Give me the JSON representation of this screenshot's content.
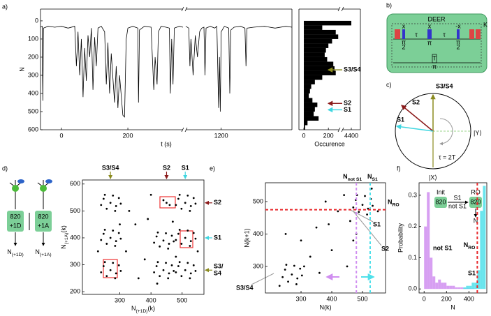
{
  "panel_labels": [
    "a)",
    "b)",
    "c)",
    "d)",
    "e)",
    "f)"
  ],
  "deer": {
    "title": "DEER",
    "loop": "K",
    "phase_x": "x",
    "phase_mx": "-x",
    "tau": "τ",
    "pi": "π",
    "two": "2",
    "delay": "T"
  },
  "bloch": {
    "s34": "S3/S4",
    "s2": "S2",
    "s1": "S1",
    "y": "|Y⟩",
    "x": "|X⟩",
    "tau": "τ = 2T"
  },
  "pulse_scheme": {
    "nv": "820",
    "d": "+1D",
    "a": "+1A",
    "nd": [
      "N",
      "(+1D)"
    ],
    "na": [
      "N",
      "(+1A)"
    ]
  },
  "readout_inset": {
    "init": "Init",
    "ro": "RO",
    "nv": "820",
    "s1": "S1",
    "not_s1": "not S1",
    "n": "N"
  },
  "e_labels": [
    "S3/S4",
    "S1",
    "S2"
  ],
  "chart_data": [
    {
      "type": "line",
      "xlabel": "t (s)",
      "ylabel": "N",
      "color": "#000000",
      "x": [
        -63,
        -58,
        -56,
        -54,
        -40,
        -20,
        0,
        20,
        40,
        45,
        50,
        55,
        60,
        65,
        70,
        75,
        80,
        85,
        90,
        95,
        100,
        105,
        110,
        120,
        130,
        135,
        140,
        145,
        150,
        160,
        165,
        170,
        175,
        185,
        190,
        195,
        200,
        215,
        230,
        232,
        235,
        250,
        270,
        278,
        282,
        288,
        292,
        300,
        315,
        325,
        328,
        332,
        336,
        340,
        355,
        366,
        null,
        1036,
        1050,
        1055,
        1060,
        1070,
        1080,
        1090,
        1100,
        1110,
        1120,
        1125,
        1130,
        1150,
        1170,
        1180,
        1188,
        1192,
        1196,
        1200,
        1215,
        1235,
        1240,
        1245,
        1260,
        1290,
        1310,
        1315,
        1320,
        1350,
        1400,
        1450,
        1500,
        1528
      ],
      "values": [
        35,
        30,
        440,
        40,
        30,
        35,
        30,
        40,
        30,
        250,
        60,
        300,
        100,
        420,
        150,
        330,
        80,
        200,
        40,
        380,
        90,
        250,
        40,
        30,
        60,
        350,
        120,
        400,
        180,
        450,
        250,
        480,
        300,
        520,
        530,
        100,
        40,
        30,
        40,
        450,
        50,
        30,
        35,
        380,
        200,
        350,
        60,
        30,
        35,
        40,
        400,
        100,
        350,
        40,
        30,
        35,
        null,
        30,
        40,
        250,
        100,
        300,
        80,
        200,
        60,
        40,
        35,
        300,
        40,
        30,
        40,
        30,
        480,
        200,
        500,
        60,
        30,
        40,
        400,
        50,
        35,
        30,
        40,
        250,
        40,
        35,
        30,
        40,
        30,
        35
      ],
      "xlim": [
        [
          -63,
          366
        ],
        [
          1036,
          1528
        ]
      ],
      "xticks": [
        0,
        200,
        1200
      ],
      "ylim": [
        -65,
        600
      ],
      "yinverted": true,
      "yticks": [
        0,
        100,
        200,
        300,
        400,
        500,
        600
      ]
    },
    {
      "type": "histogram",
      "orientation": "horizontal",
      "xlabel": "Occurence",
      "color": "#000000",
      "bins": [
        0,
        25,
        50,
        75,
        100,
        125,
        150,
        175,
        200,
        225,
        250,
        275,
        300,
        325,
        350,
        375,
        400,
        425,
        450,
        475,
        500,
        525,
        550,
        575,
        600
      ],
      "values": [
        4400,
        150,
        260,
        280,
        230,
        200,
        180,
        170,
        190,
        240,
        250,
        260,
        150,
        90,
        60,
        50,
        40,
        70,
        110,
        90,
        80,
        120,
        30,
        10
      ],
      "xlim": [
        [
          -40,
          290
        ],
        [
          4300,
          4500
        ]
      ],
      "xticks": [
        0,
        200,
        4400
      ],
      "ylim": [
        -65,
        600
      ],
      "yinverted": true,
      "annotations": [
        {
          "text": "S3/S4",
          "value": 270,
          "color": "#8a8a1e"
        },
        {
          "text": "S2",
          "value": 455,
          "color": "#8b1a1a"
        },
        {
          "text": "S1",
          "value": 490,
          "color": "#3fd6e0"
        }
      ]
    },
    {
      "type": "scatter",
      "xlabel": [
        "N",
        "(+1D)",
        "(k)"
      ],
      "ylabel": [
        "N",
        "(+1A)",
        "(k)"
      ],
      "color": "#000000",
      "x": [
        270,
        248,
        288,
        258,
        297,
        240,
        278,
        285,
        252,
        303,
        270,
        248,
        288,
        258,
        297,
        240,
        278,
        285,
        252,
        303,
        270,
        248,
        288,
        258,
        297,
        240,
        278,
        285,
        252,
        303,
        440,
        418,
        458,
        428,
        467,
        410,
        448,
        455,
        422,
        473,
        440,
        418,
        458,
        428,
        467,
        410,
        448,
        455,
        422,
        473,
        510,
        488,
        528,
        498,
        537,
        480,
        518,
        525,
        492,
        543,
        510,
        488,
        528,
        498,
        537,
        480,
        518,
        525,
        492,
        543,
        510,
        488,
        528,
        498,
        537,
        480,
        518,
        525,
        492,
        543,
        450,
        440,
        460,
        350,
        380,
        330,
        400,
        360,
        230,
        470,
        390,
        320,
        300,
        480,
        420,
        550
      ],
      "values": [
        530,
        545,
        518,
        508,
        548,
        522,
        557,
        500,
        560,
        527,
        400,
        415,
        388,
        378,
        418,
        392,
        427,
        370,
        430,
        397,
        280,
        295,
        268,
        258,
        298,
        272,
        307,
        250,
        310,
        277,
        390,
        405,
        378,
        368,
        408,
        382,
        417,
        360,
        420,
        387,
        280,
        295,
        268,
        258,
        298,
        272,
        307,
        250,
        310,
        277,
        530,
        545,
        518,
        508,
        548,
        522,
        557,
        500,
        560,
        527,
        400,
        415,
        388,
        378,
        418,
        392,
        427,
        370,
        430,
        397,
        280,
        295,
        268,
        258,
        298,
        272,
        307,
        250,
        310,
        277,
        530,
        540,
        522,
        450,
        320,
        500,
        560,
        250,
        350,
        460,
        470,
        350,
        450,
        330,
        230,
        350
      ],
      "xlim": [
        180,
        570
      ],
      "xticks": [
        300,
        400,
        500
      ],
      "ylim": [
        190,
        615
      ],
      "yticks": [
        200,
        300,
        400,
        500,
        600
      ],
      "xannotations": [
        {
          "text": "S3/S4",
          "value": 270,
          "color": "#8a8a1e"
        },
        {
          "text": "S2",
          "value": 450,
          "color": "#8b1a1a"
        },
        {
          "text": "S1",
          "value": 510,
          "color": "#3fd6e0"
        }
      ],
      "yannotations": [
        {
          "text": "S2",
          "value": 530,
          "color": "#8b1a1a"
        },
        {
          "text": "S1",
          "value": 400,
          "color": "#3fd6e0"
        },
        {
          "text": [
            "S3/",
            "S4"
          ],
          "value": 280,
          "color": "#8a8a1e"
        }
      ]
    },
    {
      "type": "scatter",
      "xlabel": "N(k)",
      "ylabel": "N(k+1)",
      "color": "#000000",
      "x": [
        270,
        248,
        288,
        258,
        297,
        240,
        278,
        285,
        252,
        303,
        500,
        478,
        518,
        488,
        527,
        470,
        508,
        515,
        482,
        533,
        230,
        310,
        350,
        400,
        420,
        300,
        450,
        380,
        330,
        480,
        550,
        250,
        440,
        390,
        460,
        530,
        470,
        360
      ],
      "values": [
        275,
        290,
        263,
        253,
        293,
        267,
        302,
        245,
        305,
        272,
        490,
        505,
        478,
        468,
        508,
        482,
        517,
        460,
        520,
        487,
        240,
        300,
        420,
        350,
        470,
        380,
        300,
        500,
        330,
        400,
        470,
        400,
        520,
        430,
        440,
        540,
        380,
        280
      ],
      "xlim": [
        184,
        575
      ],
      "xticks": [
        300,
        400,
        500
      ],
      "ylim": [
        218,
        558
      ],
      "yticks": [
        300,
        400,
        500
      ],
      "vlines": [
        {
          "label": [
            "N",
            "not S1"
          ],
          "value": 480,
          "color": "#d08ef0"
        },
        {
          "label": [
            "N",
            "S1"
          ],
          "value": 525,
          "color": "#4fe0ea"
        }
      ],
      "hlines": [
        {
          "label": [
            "N",
            "RO"
          ],
          "value": 475,
          "color": "#e8282b"
        }
      ]
    },
    {
      "type": "histogram",
      "orientation": "vertical",
      "xlabel": "N",
      "ylabel": "Probability",
      "bins": [
        0,
        25,
        50,
        75,
        100,
        125,
        150,
        175,
        200,
        225,
        250,
        275,
        300,
        325,
        350,
        375,
        400,
        425,
        450,
        475,
        500,
        525,
        550
      ],
      "series": [
        {
          "name": "not S1",
          "color": "#d08ef0",
          "values": [
            0.2,
            0.31,
            0.1,
            0.04,
            0.02,
            0.03,
            0.02,
            0.02,
            0.01,
            0.01,
            0.01,
            0.005,
            0.005,
            0.005,
            0.003,
            0.003,
            0.002,
            0.002,
            0,
            0,
            0,
            0
          ]
        },
        {
          "name": "S1",
          "color": "#4fe0ea",
          "values": [
            0,
            0,
            0,
            0,
            0,
            0,
            0,
            0,
            0,
            0,
            0,
            0,
            0,
            0,
            0.005,
            0.01,
            0.01,
            0.02,
            0.02,
            0.06,
            0.25,
            0.33
          ]
        }
      ],
      "xlim": [
        -45,
        560
      ],
      "xticks": [
        0,
        200,
        400
      ],
      "ylim": [
        -0.013,
        0.34
      ],
      "yticks": [
        {
          "value": 0,
          "label": "0.0"
        },
        0.1,
        0.2,
        0.3
      ],
      "vlines": [
        {
          "label": [
            "N",
            "RO"
          ],
          "value": 475,
          "color": "#e8282b"
        }
      ]
    }
  ]
}
